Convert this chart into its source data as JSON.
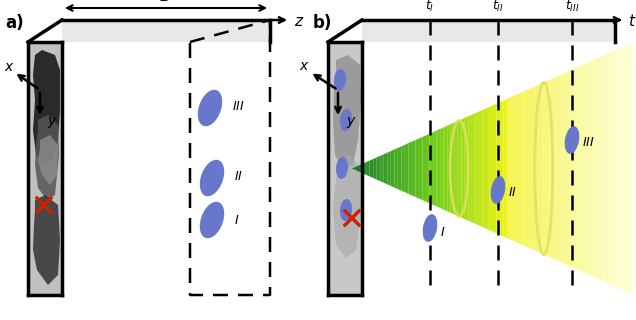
{
  "fig_width": 6.36,
  "fig_height": 3.2,
  "bg_color": "#ffffff",
  "blob_color": "#6677cc",
  "cross_color": "#cc2200"
}
